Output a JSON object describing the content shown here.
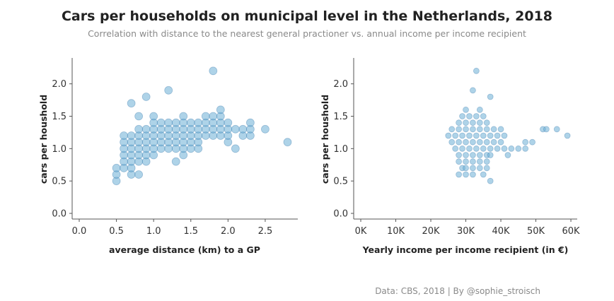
{
  "title": "Cars per households on municipal level in the Netherlands, 2018",
  "subtitle": "Correlation with distance to the nearest general practioner vs. annual income per income recipient",
  "source": "Data: CBS, 2018  |  By @sophie_stroisch",
  "colors": {
    "point": "#6baed6",
    "point_stroke": "#2c6da3",
    "axis": "#555555"
  },
  "chart_data": [
    {
      "type": "scatter",
      "xlabel": "average distance (km) to a GP",
      "ylabel": "cars per houshold",
      "xlim": [
        0,
        2.9
      ],
      "ylim": [
        0,
        2.4
      ],
      "xticks": [
        0.0,
        0.5,
        1.0,
        1.5,
        2.0,
        2.5
      ],
      "xtick_labels": [
        "0.0",
        "0.5",
        "1.0",
        "1.5",
        "2.0",
        "2.5"
      ],
      "yticks": [
        0.0,
        0.5,
        1.0,
        1.5,
        2.0
      ],
      "ytick_labels": [
        "0.0",
        "0.5",
        "1.0",
        "1.5",
        "2.0"
      ],
      "points": [
        [
          0.5,
          0.5
        ],
        [
          0.5,
          0.6
        ],
        [
          0.5,
          0.7
        ],
        [
          0.6,
          0.7
        ],
        [
          0.6,
          0.8
        ],
        [
          0.6,
          0.9
        ],
        [
          0.6,
          1.0
        ],
        [
          0.6,
          1.1
        ],
        [
          0.6,
          1.2
        ],
        [
          0.7,
          0.6
        ],
        [
          0.7,
          0.7
        ],
        [
          0.7,
          0.8
        ],
        [
          0.7,
          0.9
        ],
        [
          0.7,
          1.0
        ],
        [
          0.7,
          1.1
        ],
        [
          0.7,
          1.2
        ],
        [
          0.7,
          1.7
        ],
        [
          0.8,
          0.6
        ],
        [
          0.8,
          0.8
        ],
        [
          0.8,
          0.9
        ],
        [
          0.8,
          1.0
        ],
        [
          0.8,
          1.1
        ],
        [
          0.8,
          1.2
        ],
        [
          0.8,
          1.3
        ],
        [
          0.8,
          1.5
        ],
        [
          0.9,
          0.8
        ],
        [
          0.9,
          0.9
        ],
        [
          0.9,
          1.0
        ],
        [
          0.9,
          1.1
        ],
        [
          0.9,
          1.2
        ],
        [
          0.9,
          1.3
        ],
        [
          0.9,
          1.8
        ],
        [
          1.0,
          0.9
        ],
        [
          1.0,
          1.0
        ],
        [
          1.0,
          1.1
        ],
        [
          1.0,
          1.2
        ],
        [
          1.0,
          1.3
        ],
        [
          1.0,
          1.4
        ],
        [
          1.0,
          1.5
        ],
        [
          1.1,
          1.0
        ],
        [
          1.1,
          1.1
        ],
        [
          1.1,
          1.2
        ],
        [
          1.1,
          1.3
        ],
        [
          1.1,
          1.4
        ],
        [
          1.2,
          1.0
        ],
        [
          1.2,
          1.1
        ],
        [
          1.2,
          1.2
        ],
        [
          1.2,
          1.3
        ],
        [
          1.2,
          1.4
        ],
        [
          1.2,
          1.9
        ],
        [
          1.3,
          0.8
        ],
        [
          1.3,
          1.0
        ],
        [
          1.3,
          1.1
        ],
        [
          1.3,
          1.2
        ],
        [
          1.3,
          1.3
        ],
        [
          1.3,
          1.4
        ],
        [
          1.4,
          0.9
        ],
        [
          1.4,
          1.0
        ],
        [
          1.4,
          1.1
        ],
        [
          1.4,
          1.2
        ],
        [
          1.4,
          1.3
        ],
        [
          1.4,
          1.4
        ],
        [
          1.4,
          1.5
        ],
        [
          1.5,
          1.0
        ],
        [
          1.5,
          1.1
        ],
        [
          1.5,
          1.2
        ],
        [
          1.5,
          1.3
        ],
        [
          1.5,
          1.4
        ],
        [
          1.6,
          1.0
        ],
        [
          1.6,
          1.1
        ],
        [
          1.6,
          1.2
        ],
        [
          1.6,
          1.3
        ],
        [
          1.6,
          1.4
        ],
        [
          1.7,
          1.2
        ],
        [
          1.7,
          1.3
        ],
        [
          1.7,
          1.4
        ],
        [
          1.7,
          1.5
        ],
        [
          1.8,
          1.2
        ],
        [
          1.8,
          1.3
        ],
        [
          1.8,
          1.4
        ],
        [
          1.8,
          1.5
        ],
        [
          1.8,
          2.2
        ],
        [
          1.9,
          1.2
        ],
        [
          1.9,
          1.3
        ],
        [
          1.9,
          1.4
        ],
        [
          1.9,
          1.5
        ],
        [
          1.9,
          1.6
        ],
        [
          2.0,
          1.1
        ],
        [
          2.0,
          1.2
        ],
        [
          2.0,
          1.3
        ],
        [
          2.0,
          1.4
        ],
        [
          2.1,
          1.0
        ],
        [
          2.1,
          1.3
        ],
        [
          2.2,
          1.2
        ],
        [
          2.2,
          1.3
        ],
        [
          2.3,
          1.2
        ],
        [
          2.3,
          1.3
        ],
        [
          2.3,
          1.4
        ],
        [
          2.5,
          1.3
        ],
        [
          2.8,
          1.1
        ]
      ]
    },
    {
      "type": "scatter",
      "xlabel": "Yearly income per income recipient (in €)",
      "ylabel": "cars per houshold",
      "xlim": [
        0,
        61000
      ],
      "ylim": [
        0,
        2.4
      ],
      "xticks": [
        0,
        10000,
        20000,
        30000,
        40000,
        50000,
        60000
      ],
      "xtick_labels": [
        "0K",
        "10K",
        "20K",
        "30K",
        "40K",
        "50K",
        "60K"
      ],
      "yticks": [
        0.0,
        0.5,
        1.0,
        1.5,
        2.0
      ],
      "ytick_labels": [
        "0.0",
        "0.5",
        "1.0",
        "1.5",
        "2.0"
      ],
      "points": [
        [
          28000,
          0.6
        ],
        [
          30000,
          0.6
        ],
        [
          32000,
          0.6
        ],
        [
          35000,
          0.6
        ],
        [
          37000,
          0.5
        ],
        [
          29000,
          0.7
        ],
        [
          30000,
          0.7
        ],
        [
          32000,
          0.7
        ],
        [
          34000,
          0.7
        ],
        [
          36000,
          0.7
        ],
        [
          28000,
          0.8
        ],
        [
          30000,
          0.8
        ],
        [
          32000,
          0.8
        ],
        [
          34000,
          0.8
        ],
        [
          36000,
          0.8
        ],
        [
          28000,
          0.9
        ],
        [
          30000,
          0.9
        ],
        [
          32000,
          0.9
        ],
        [
          34000,
          0.9
        ],
        [
          36000,
          0.9
        ],
        [
          37000,
          0.9
        ],
        [
          27000,
          1.0
        ],
        [
          29000,
          1.0
        ],
        [
          31000,
          1.0
        ],
        [
          33000,
          1.0
        ],
        [
          35000,
          1.0
        ],
        [
          37000,
          1.0
        ],
        [
          39000,
          1.0
        ],
        [
          41000,
          1.0
        ],
        [
          26000,
          1.1
        ],
        [
          28000,
          1.1
        ],
        [
          30000,
          1.1
        ],
        [
          32000,
          1.1
        ],
        [
          34000,
          1.1
        ],
        [
          36000,
          1.1
        ],
        [
          38000,
          1.1
        ],
        [
          40000,
          1.1
        ],
        [
          25000,
          1.2
        ],
        [
          27000,
          1.2
        ],
        [
          29000,
          1.2
        ],
        [
          31000,
          1.2
        ],
        [
          33000,
          1.2
        ],
        [
          35000,
          1.2
        ],
        [
          37000,
          1.2
        ],
        [
          39000,
          1.2
        ],
        [
          41000,
          1.2
        ],
        [
          26000,
          1.3
        ],
        [
          28000,
          1.3
        ],
        [
          30000,
          1.3
        ],
        [
          32000,
          1.3
        ],
        [
          34000,
          1.3
        ],
        [
          36000,
          1.3
        ],
        [
          38000,
          1.3
        ],
        [
          40000,
          1.3
        ],
        [
          28000,
          1.4
        ],
        [
          30000,
          1.4
        ],
        [
          32000,
          1.4
        ],
        [
          34000,
          1.4
        ],
        [
          36000,
          1.4
        ],
        [
          29000,
          1.5
        ],
        [
          31000,
          1.5
        ],
        [
          33000,
          1.5
        ],
        [
          35000,
          1.5
        ],
        [
          30000,
          1.6
        ],
        [
          34000,
          1.6
        ],
        [
          37000,
          1.8
        ],
        [
          32000,
          1.9
        ],
        [
          33000,
          2.2
        ],
        [
          42000,
          0.9
        ],
        [
          43000,
          1.0
        ],
        [
          45000,
          1.0
        ],
        [
          47000,
          1.0
        ],
        [
          47000,
          1.1
        ],
        [
          49000,
          1.1
        ],
        [
          52000,
          1.3
        ],
        [
          53000,
          1.3
        ],
        [
          56000,
          1.3
        ],
        [
          59000,
          1.2
        ]
      ]
    }
  ]
}
